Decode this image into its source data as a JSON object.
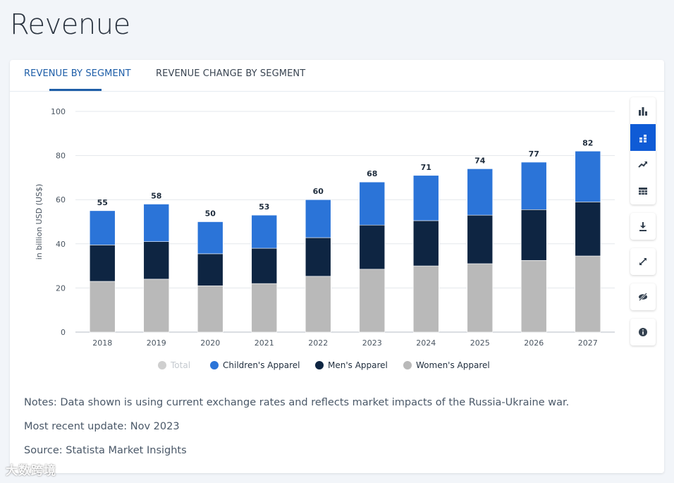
{
  "page": {
    "title": "Revenue"
  },
  "tabs": [
    {
      "label": "REVENUE BY SEGMENT",
      "active": true
    },
    {
      "label": "REVENUE CHANGE BY SEGMENT",
      "active": false
    }
  ],
  "toolbar": [
    {
      "icon": "bar-chart-icon",
      "active": false
    },
    {
      "icon": "stacked-bar-icon",
      "active": true
    },
    {
      "icon": "trend-line-icon",
      "active": false
    },
    {
      "icon": "table-icon",
      "active": false
    },
    {
      "icon": "download-icon",
      "active": false
    },
    {
      "icon": "fullscreen-icon",
      "active": false
    },
    {
      "icon": "hide-icon",
      "active": false
    },
    {
      "icon": "info-icon",
      "active": false
    }
  ],
  "notes": {
    "note": "Notes: Data shown is using current exchange rates and reflects market impacts of the Russia-Ukraine war.",
    "update": "Most recent update: Nov 2023",
    "source": "Source: Statista Market Insights"
  },
  "watermark": "大数跨境",
  "colors": {
    "womens": "#b9b9b9",
    "mens": "#0e2542",
    "childrens": "#2b74d8",
    "total_legend": "#cfcfcf",
    "accent": "#1e5ea8"
  },
  "chart_data": {
    "type": "bar",
    "stacked": true,
    "ylabel": "in billion USD (US$)",
    "xlabel": "",
    "ylim": [
      0,
      100
    ],
    "yticks": [
      0,
      20,
      40,
      60,
      80,
      100
    ],
    "categories": [
      "2018",
      "2019",
      "2020",
      "2021",
      "2022",
      "2023",
      "2024",
      "2025",
      "2026",
      "2027"
    ],
    "series": [
      {
        "name": "Women's Apparel",
        "values": [
          23,
          24,
          21,
          22,
          25.3,
          28.5,
          30,
          31,
          32.5,
          34.5
        ]
      },
      {
        "name": "Men's Apparel",
        "values": [
          16.5,
          17,
          14.5,
          16,
          17.5,
          20,
          20.5,
          22,
          23,
          24.5
        ]
      },
      {
        "name": "Children's Apparel",
        "values": [
          15.5,
          17,
          14.5,
          15,
          17.2,
          19.5,
          20.5,
          21,
          21.5,
          23
        ]
      }
    ],
    "totals": [
      55,
      58,
      50,
      53,
      60,
      68,
      71,
      74,
      77,
      82
    ],
    "legend": [
      "Total",
      "Children's Apparel",
      "Men's Apparel",
      "Women's Apparel"
    ],
    "legend_position": "bottom",
    "grid": true
  }
}
